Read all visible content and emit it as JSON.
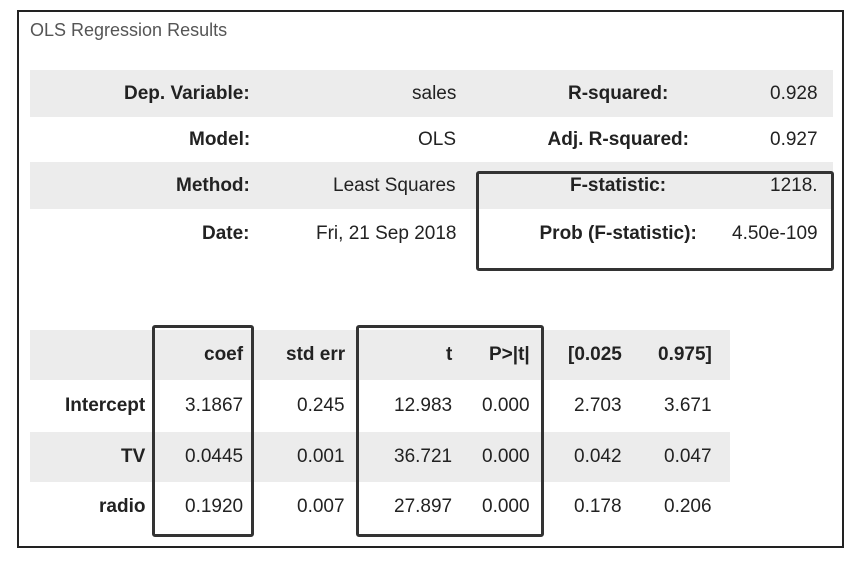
{
  "title": "OLS Regression Results",
  "summary": {
    "rows": [
      [
        "Dep. Variable:",
        "sales",
        "R-squared:",
        "0.928"
      ],
      [
        "Model:",
        "OLS",
        "Adj. R-squared:",
        "0.927"
      ],
      [
        "Method:",
        "Least Squares",
        "F-statistic:",
        "1218."
      ],
      [
        "Date:",
        "Fri, 21 Sep 2018",
        "Prob (F-statistic):",
        "4.50e-109"
      ]
    ]
  },
  "coefficients": {
    "header": [
      "coef",
      "std err",
      "t",
      "P>|t|",
      "[0.025",
      "0.975]"
    ],
    "rows": [
      [
        "Intercept",
        "3.1867",
        "0.245",
        "12.983",
        "0.000",
        "2.703",
        "3.671"
      ],
      [
        "TV",
        "0.0445",
        "0.001",
        "36.721",
        "0.000",
        "0.042",
        "0.047"
      ],
      [
        "radio",
        "0.1920",
        "0.007",
        "27.897",
        "0.000",
        "0.178",
        "0.206"
      ]
    ]
  }
}
